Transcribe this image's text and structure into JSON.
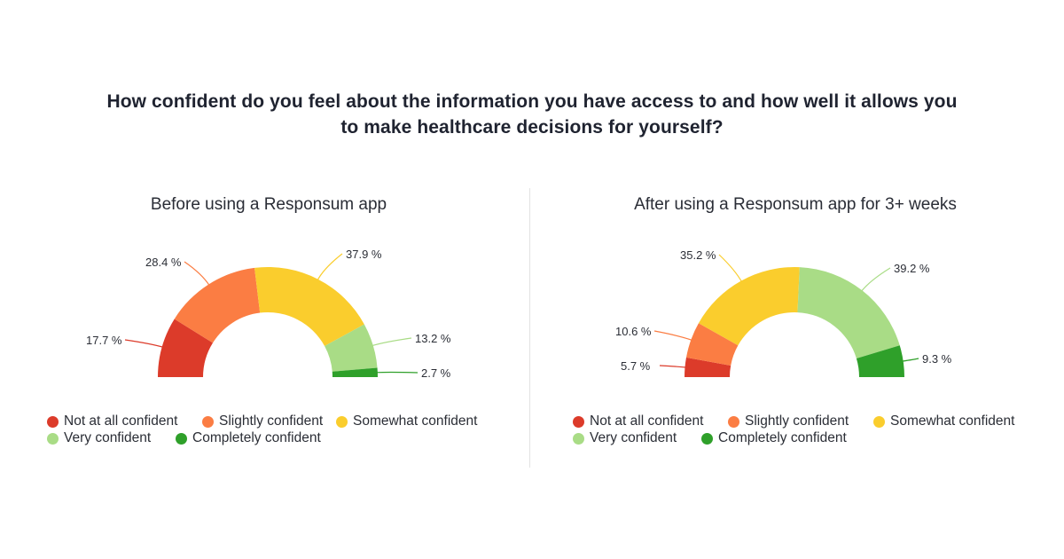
{
  "title_line1": "How confident do you feel about the information you have access to and how well it allows you",
  "title_line2": "to make healthcare decisions for yourself?",
  "colors": {
    "Not at all confident": "#dc3b2a",
    "Slightly confident": "#fb7d43",
    "Somewhat confident": "#facd2d",
    "Very confident": "#a9dc86",
    "Completely confident": "#2fa02a"
  },
  "chart_data": [
    {
      "type": "pie",
      "variant": "half-donut",
      "title": "Before using a Responsum app",
      "categories": [
        "Not at all confident",
        "Slightly confident",
        "Somewhat confident",
        "Very confident",
        "Completely confident"
      ],
      "values": [
        17.7,
        28.4,
        37.9,
        13.2,
        2.7
      ],
      "labels": [
        "17.7 %",
        "28.4 %",
        "37.9 %",
        "13.2 %",
        "2.7 %"
      ],
      "legend": "bottom"
    },
    {
      "type": "pie",
      "variant": "half-donut",
      "title": "After using a Responsum app for 3+ weeks",
      "categories": [
        "Not at all confident",
        "Slightly confident",
        "Somewhat confident",
        "Very confident",
        "Completely confident"
      ],
      "values": [
        5.7,
        10.6,
        35.2,
        39.2,
        9.3
      ],
      "labels": [
        "5.7 %",
        "10.6 %",
        "35.2 %",
        "39.2 %",
        "9.3 %"
      ],
      "legend": "bottom"
    }
  ]
}
